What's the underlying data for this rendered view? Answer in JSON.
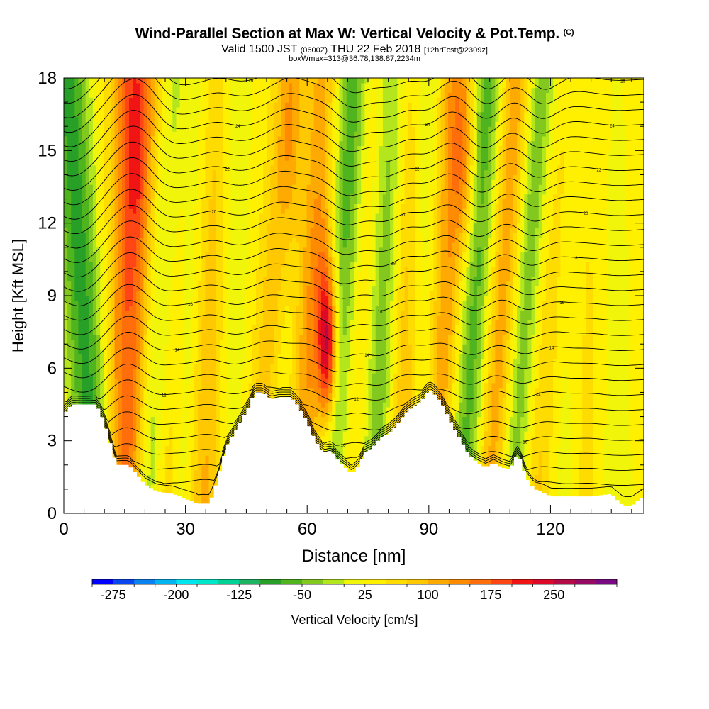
{
  "chart_data": {
    "type": "heatmap",
    "title": "Wind-Parallel Section at Max W: Vertical Velocity & Pot.Temp.",
    "title_tag": "(C)",
    "subtitle_parts": [
      "Valid 1500 JST ",
      "(0600Z)",
      " THU 22 Feb 2018 ",
      "[12hrFcst@2309z]"
    ],
    "subtitle2": "boxWmax=313@36.78,138.87,2234m",
    "xlabel": "Distance [nm]",
    "ylabel": "Height [Kft MSL]",
    "xlim": [
      0,
      143
    ],
    "ylim": [
      0,
      18
    ],
    "x_ticks": [
      0,
      30,
      60,
      90,
      120
    ],
    "y_ticks": [
      0,
      3,
      6,
      9,
      12,
      15,
      18
    ],
    "colorbar": {
      "label": "Vertical Velocity [cm/s]",
      "min": -300,
      "max": 325,
      "step": 25,
      "tick_labels": [
        "-275",
        "-200",
        "-125",
        "-50",
        "25",
        "100",
        "175",
        "250"
      ],
      "colors": [
        "#0000ff",
        "#0a46f0",
        "#0a82f0",
        "#00b4f0",
        "#00e6f0",
        "#00e6c8",
        "#00d296",
        "#1eb464",
        "#28a028",
        "#50b41e",
        "#82c81e",
        "#b4e61e",
        "#f0f50a",
        "#fff000",
        "#ffdc00",
        "#ffc800",
        "#ffaa00",
        "#ff8c00",
        "#ff6e0a",
        "#ff4614",
        "#f01414",
        "#dc0a28",
        "#b40a46",
        "#960a64",
        "#780a82"
      ]
    },
    "terrain_kft": {
      "x": [
        0,
        2,
        8,
        10,
        13,
        16,
        20,
        23,
        27,
        30,
        33,
        36,
        38,
        40,
        43,
        46,
        47,
        49,
        51,
        53,
        56,
        58,
        60,
        62,
        64,
        66,
        68,
        70,
        71,
        73,
        74,
        76,
        78,
        80,
        82,
        84,
        86,
        88,
        90,
        91,
        93,
        96,
        98,
        100,
        102,
        104,
        106,
        108,
        110,
        112,
        114,
        116,
        118,
        120,
        125,
        130,
        135,
        138,
        140,
        143
      ],
      "h": [
        4.1,
        4.5,
        4.5,
        3.8,
        2.0,
        2.0,
        1.2,
        0.9,
        0.8,
        0.6,
        0.4,
        0.4,
        1.4,
        2.7,
        3.6,
        4.5,
        5.0,
        5.0,
        4.7,
        4.8,
        4.8,
        4.4,
        3.8,
        3.0,
        2.5,
        2.6,
        2.1,
        1.8,
        1.6,
        2.0,
        2.5,
        2.7,
        3.1,
        3.3,
        3.6,
        4.1,
        4.4,
        4.6,
        5.1,
        5.0,
        4.6,
        3.6,
        3.0,
        2.4,
        2.1,
        1.9,
        2.1,
        1.9,
        1.8,
        2.5,
        1.5,
        1.0,
        0.9,
        0.7,
        0.7,
        0.7,
        0.8,
        0.3,
        0.3,
        0.7
      ]
    },
    "velocity_bands": [
      {
        "x0": 8,
        "dx": -7,
        "width": 5,
        "w": -120
      },
      {
        "x0": 15,
        "dx": 2,
        "width": 5,
        "w": 140
      },
      {
        "x0": 21,
        "dx": 6,
        "width": 4,
        "w": -140
      },
      {
        "x0": 24,
        "dx": 2,
        "width": 5,
        "w": 100
      },
      {
        "x0": 29,
        "dx": 5,
        "width": 4,
        "w": -90
      },
      {
        "x0": 34,
        "dx": 2,
        "width": 6,
        "w": 90
      },
      {
        "x0": 40,
        "dx": 2,
        "width": 4,
        "w": -50
      },
      {
        "x0": 48,
        "dx": 8,
        "width": 4,
        "w": 90
      },
      {
        "x0": 52,
        "dx": 7,
        "width": 5,
        "w": -100
      },
      {
        "x0": 58,
        "dx": 4,
        "width": 6,
        "w": 125
      },
      {
        "x0": 65,
        "dx": 7,
        "width": 5,
        "w": -130
      },
      {
        "x0": 71,
        "dx": 5,
        "width": 4,
        "w": 80
      },
      {
        "x0": 76,
        "dx": 6,
        "width": 5,
        "w": -100
      },
      {
        "x0": 83,
        "dx": 2,
        "width": 4,
        "w": 90
      },
      {
        "x0": 88,
        "dx": 2,
        "width": 4,
        "w": -60
      },
      {
        "x0": 92,
        "dx": 5,
        "width": 5,
        "w": 110
      },
      {
        "x0": 98,
        "dx": 7,
        "width": 5,
        "w": -130
      },
      {
        "x0": 105,
        "dx": 6,
        "width": 5,
        "w": 110
      },
      {
        "x0": 110,
        "dx": 8,
        "width": 4,
        "w": -110
      },
      {
        "x0": 117,
        "dx": 6,
        "width": 5,
        "w": 70
      },
      {
        "x0": 122,
        "dx": 3,
        "width": 5,
        "w": -60
      },
      {
        "x0": 128,
        "dx": 2,
        "width": 6,
        "w": 40
      },
      {
        "x0": 135,
        "dx": -1,
        "width": 5,
        "w": -30
      }
    ],
    "velocity_peaks": [
      {
        "x": 65,
        "z": 6.8,
        "sx": 2.2,
        "sz": 3.0,
        "w": 180
      },
      {
        "x": 65,
        "z": 8.0,
        "sx": 3.5,
        "sz": 5.0,
        "w": 80
      },
      {
        "x": 99,
        "z": 14.0,
        "sx": 3.0,
        "sz": 3.5,
        "w": 70
      },
      {
        "x": 18,
        "z": 15.0,
        "sx": 2.5,
        "sz": 3.5,
        "w": 50
      },
      {
        "x": 56,
        "z": 15.0,
        "sx": 2.5,
        "sz": 4.0,
        "w": 40
      }
    ],
    "velocity_background_cms": 35,
    "theta_contours": {
      "count": 30,
      "spacing_kft": 0.62,
      "line_labels": [
        "8",
        "10",
        "12",
        "14",
        "16",
        "18",
        "20",
        "22",
        "24",
        "26"
      ]
    }
  },
  "colors": {
    "contour": "#000000",
    "terrain": "#ffffff"
  }
}
